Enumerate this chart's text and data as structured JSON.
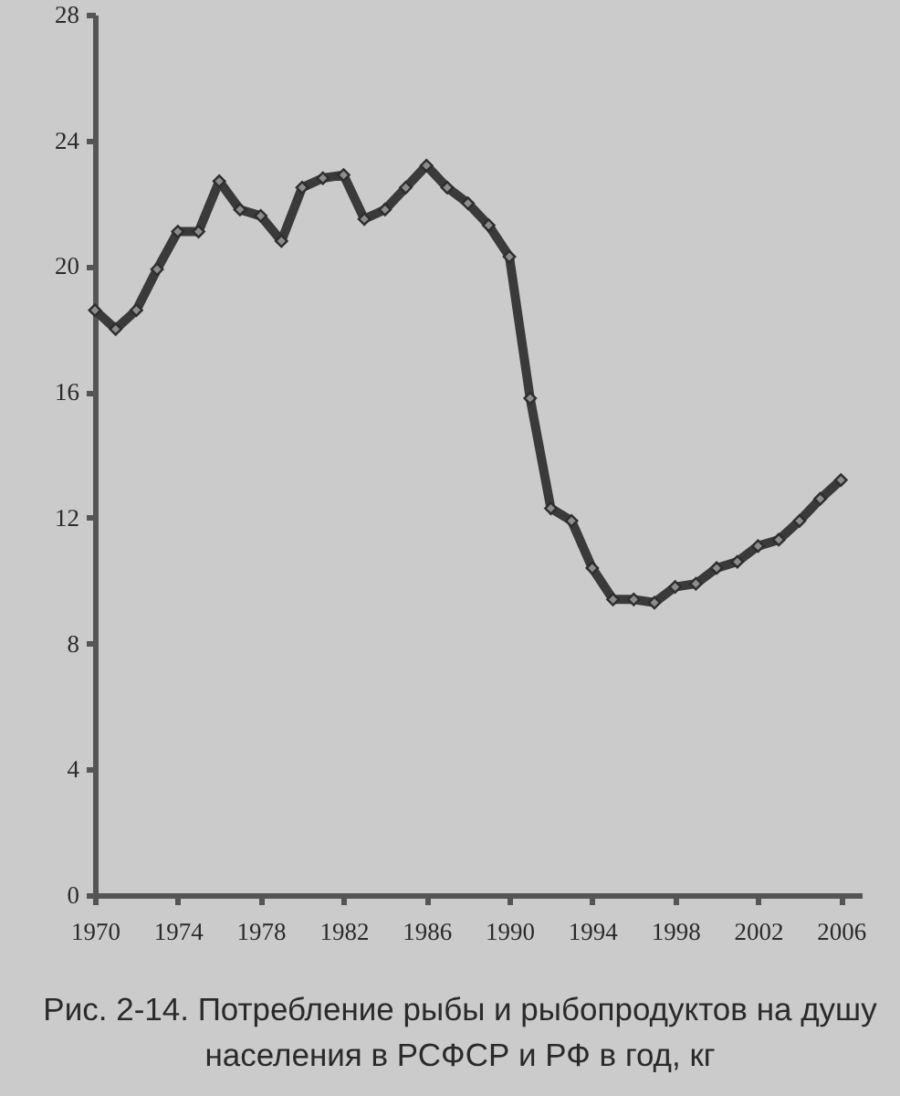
{
  "chart_data": {
    "type": "line",
    "title": "Рис. 2-14. Потребление рыбы и рыбопродуктов на душу населения в РСФСР и РФ в год, кг",
    "x": [
      1970,
      1971,
      1972,
      1973,
      1974,
      1975,
      1976,
      1977,
      1978,
      1979,
      1980,
      1981,
      1982,
      1983,
      1984,
      1985,
      1986,
      1987,
      1988,
      1989,
      1990,
      1991,
      1992,
      1993,
      1994,
      1995,
      1996,
      1997,
      1998,
      1999,
      2000,
      2001,
      2002,
      2003,
      2004,
      2005,
      2006
    ],
    "series": [
      {
        "color": "#3a3a3a",
        "values": [
          18.6,
          18.0,
          18.6,
          19.9,
          21.1,
          21.1,
          22.7,
          21.8,
          21.6,
          20.8,
          22.5,
          22.8,
          22.9,
          21.5,
          21.8,
          22.5,
          23.2,
          22.5,
          22.0,
          21.3,
          20.3,
          15.8,
          12.3,
          11.9,
          10.4,
          9.4,
          9.4,
          9.3,
          9.8,
          9.9,
          10.4,
          10.6,
          11.1,
          11.3,
          11.9,
          12.6,
          13.2
        ]
      }
    ],
    "xlim": [
      1970,
      2007
    ],
    "xticks": [
      1970,
      1974,
      1978,
      1982,
      1986,
      1990,
      1994,
      1998,
      2002,
      2006
    ],
    "ylim": [
      0,
      28
    ],
    "yticks": [
      0,
      4,
      8,
      12,
      16,
      20,
      24,
      28
    ],
    "grid": false,
    "marker": "diamond",
    "line_style": "solid"
  }
}
